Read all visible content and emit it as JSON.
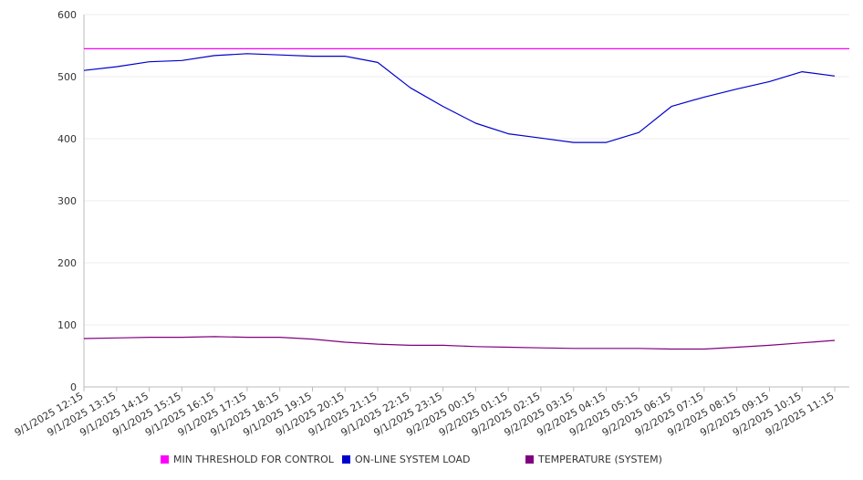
{
  "chart_data": {
    "type": "line",
    "title": "",
    "xlabel": "",
    "ylabel": "",
    "ylim": [
      0,
      600
    ],
    "yticks": [
      0,
      100,
      200,
      300,
      400,
      500,
      600
    ],
    "grid": true,
    "legend_position": "bottom",
    "x_categories": [
      "9/1/2025 12:15",
      "9/1/2025 13:15",
      "9/1/2025 14:15",
      "9/1/2025 15:15",
      "9/1/2025 16:15",
      "9/1/2025 17:15",
      "9/1/2025 18:15",
      "9/1/2025 19:15",
      "9/1/2025 20:15",
      "9/1/2025 21:15",
      "9/1/2025 22:15",
      "9/1/2025 23:15",
      "9/2/2025 00:15",
      "9/2/2025 01:15",
      "9/2/2025 02:15",
      "9/2/2025 03:15",
      "9/2/2025 04:15",
      "9/2/2025 05:15",
      "9/2/2025 06:15",
      "9/2/2025 07:15",
      "9/2/2025 08:15",
      "9/2/2025 09:15",
      "9/2/2025 10:15",
      "9/2/2025 11:15"
    ],
    "series": [
      {
        "name": "MIN THRESHOLD FOR CONTROL",
        "color": "#ff00ff",
        "x": [
          "9/1/2025 12:15",
          "9/2/2025 11:15"
        ],
        "values": [
          545,
          545
        ]
      },
      {
        "name": "ON-LINE SYSTEM LOAD",
        "color": "#0000cc",
        "x": [
          "9/1/2025 12:15",
          "9/1/2025 13:15",
          "9/1/2025 14:15",
          "9/1/2025 15:15",
          "9/1/2025 16:15",
          "9/1/2025 17:15",
          "9/1/2025 18:15",
          "9/1/2025 19:15",
          "9/1/2025 20:15",
          "9/1/2025 21:15",
          "9/1/2025 22:15",
          "9/1/2025 23:15",
          "9/2/2025 00:15",
          "9/2/2025 01:15",
          "9/2/2025 02:15",
          "9/2/2025 03:15",
          "9/2/2025 04:15",
          "9/2/2025 05:15",
          "9/2/2025 06:15",
          "9/2/2025 07:15",
          "9/2/2025 08:15",
          "9/2/2025 09:15",
          "9/2/2025 10:15",
          "9/2/2025 11:15"
        ],
        "values": [
          510,
          516,
          524,
          526,
          534,
          537,
          535,
          533,
          533,
          523,
          482,
          452,
          425,
          408,
          401,
          394,
          394,
          410,
          452,
          467,
          480,
          492,
          508,
          501
        ]
      },
      {
        "name": "TEMPERATURE (SYSTEM)",
        "color": "#800080",
        "x": [
          "9/1/2025 12:15",
          "9/1/2025 13:15",
          "9/1/2025 14:15",
          "9/1/2025 15:15",
          "9/1/2025 16:15",
          "9/1/2025 17:15",
          "9/1/2025 18:15",
          "9/1/2025 19:15",
          "9/1/2025 20:15",
          "9/1/2025 21:15",
          "9/1/2025 22:15",
          "9/1/2025 23:15",
          "9/2/2025 00:15",
          "9/2/2025 01:15",
          "9/2/2025 02:15",
          "9/2/2025 03:15",
          "9/2/2025 04:15",
          "9/2/2025 05:15",
          "9/2/2025 06:15",
          "9/2/2025 07:15",
          "9/2/2025 08:15",
          "9/2/2025 09:15",
          "9/2/2025 10:15",
          "9/2/2025 11:15"
        ],
        "values": [
          78,
          79,
          80,
          80,
          81,
          80,
          80,
          77,
          72,
          69,
          67,
          67,
          65,
          64,
          63,
          62,
          62,
          62,
          61,
          61,
          64,
          67,
          71,
          75
        ]
      }
    ]
  }
}
